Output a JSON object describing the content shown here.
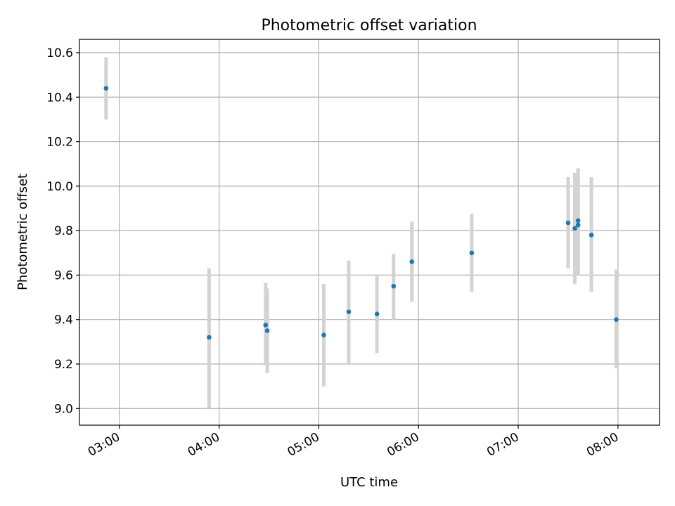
{
  "chart_data": {
    "type": "scatter",
    "title": "Photometric offset variation",
    "xlabel": "UTC time",
    "ylabel": "Photometric offset",
    "xlim": [
      "02:36",
      "08:25"
    ],
    "ylim": [
      8.925,
      10.66
    ],
    "x_ticks": [
      "03:00",
      "04:00",
      "05:00",
      "06:00",
      "07:00",
      "08:00"
    ],
    "y_ticks": [
      "9.0",
      "9.2",
      "9.4",
      "9.6",
      "9.8",
      "10.0",
      "10.2",
      "10.4",
      "10.6"
    ],
    "grid": true,
    "series": [
      {
        "marker_color": "#1f77b4",
        "errorbar_color": "#d3d3d3",
        "points": [
          {
            "x": "02:52",
            "y": 10.44,
            "ylow": 10.3,
            "yhigh": 10.58
          },
          {
            "x": "03:54",
            "y": 9.32,
            "ylow": 9.0,
            "yhigh": 9.63
          },
          {
            "x": "04:28",
            "y": 9.375,
            "ylow": 9.2,
            "yhigh": 9.565
          },
          {
            "x": "04:29",
            "y": 9.35,
            "ylow": 9.16,
            "yhigh": 9.54
          },
          {
            "x": "05:03",
            "y": 9.33,
            "ylow": 9.1,
            "yhigh": 9.56
          },
          {
            "x": "05:18",
            "y": 9.435,
            "ylow": 9.2,
            "yhigh": 9.665
          },
          {
            "x": "05:35",
            "y": 9.425,
            "ylow": 9.25,
            "yhigh": 9.6
          },
          {
            "x": "05:45",
            "y": 9.55,
            "ylow": 9.4,
            "yhigh": 9.695
          },
          {
            "x": "05:56",
            "y": 9.66,
            "ylow": 9.48,
            "yhigh": 9.84
          },
          {
            "x": "06:32",
            "y": 9.7,
            "ylow": 9.525,
            "yhigh": 9.875
          },
          {
            "x": "07:30",
            "y": 9.835,
            "ylow": 9.63,
            "yhigh": 10.04
          },
          {
            "x": "07:34",
            "y": 9.81,
            "ylow": 9.56,
            "yhigh": 10.06
          },
          {
            "x": "07:36",
            "y": 9.825,
            "ylow": 9.6,
            "yhigh": 10.08
          },
          {
            "x": "07:36",
            "y": 9.845,
            "ylow": 9.61,
            "yhigh": 10.08
          },
          {
            "x": "07:44",
            "y": 9.78,
            "ylow": 9.525,
            "yhigh": 10.04
          },
          {
            "x": "07:59",
            "y": 9.4,
            "ylow": 9.18,
            "yhigh": 9.625
          }
        ]
      }
    ]
  }
}
